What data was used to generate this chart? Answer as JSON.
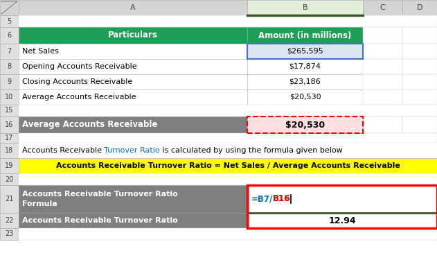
{
  "bg_color": "#ffffff",
  "green_bg": "#1e9e57",
  "gray_bg": "#7f7f7f",
  "yellow_bg": "#ffff00",
  "light_blue_bg": "#dce6f1",
  "row6_data": [
    "Particulars",
    "Amount (in millions)"
  ],
  "row7_data": [
    "Net Sales",
    "$265,595"
  ],
  "row8_data": [
    "Opening Accounts Receivable",
    "$17,874"
  ],
  "row9_data": [
    "Closing Accounts Receivable",
    "$23,186"
  ],
  "row10_data": [
    "Average Accounts Receivable",
    "$20,530"
  ],
  "row16_a": "Average Accounts Receivable",
  "row16_b": "$20,530",
  "row18_pre": "Accounts Receivable ",
  "row18_blue": "Turnover Ratio",
  "row18_post": " is calculated by using the formula given below",
  "row19_text": "Accounts Receivable Turnover Ratio = Net Sales / Average Accounts Receivable",
  "row21_a": "Accounts Receivable Turnover Ratio\nFormula",
  "row21_b_blue": "=B7/",
  "row21_b_red": "B16",
  "row22_a": "Accounts Receivable Turnover Ratio",
  "row22_b": "12.94",
  "red_border": "#ff0000",
  "blue_border": "#4472c4",
  "green_line": "#375623",
  "blue_text": "#0070c0",
  "red_text": "#ff0000",
  "cell_border": "#d0d0d0",
  "row_num_bg": "#e0e0e0",
  "col_hdr_bg": "#d0d0d0",
  "col_b_hdr_bg": "#e2efda",
  "col_b_hdr_edge": "#375623"
}
